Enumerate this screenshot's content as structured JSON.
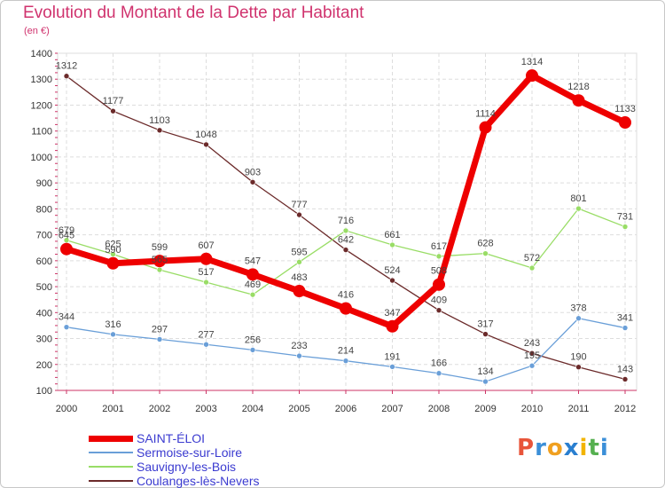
{
  "chart_data": {
    "type": "line",
    "title": "Evolution du Montant de la Dette par Habitant",
    "subtitle": "(en €)",
    "x": [
      "2000",
      "2001",
      "2002",
      "2003",
      "2004",
      "2005",
      "2006",
      "2007",
      "2008",
      "2009",
      "2010",
      "2011",
      "2012"
    ],
    "ylim": [
      100,
      1400
    ],
    "yticks": [
      100,
      200,
      300,
      400,
      500,
      600,
      700,
      800,
      900,
      1000,
      1100,
      1200,
      1300,
      1400
    ],
    "grid": true,
    "legend_position": "bottom-left",
    "series": [
      {
        "name": "SAINT-ÉLOI",
        "color": "#ee0000",
        "width": 7,
        "marker": 7,
        "values": [
          645,
          590,
          599,
          607,
          547,
          483,
          416,
          347,
          508,
          1114,
          1314,
          1218,
          1133
        ]
      },
      {
        "name": "Sermoise-sur-Loire",
        "color": "#6a9fd8",
        "width": 1.3,
        "marker": 3,
        "values": [
          344,
          316,
          297,
          277,
          256,
          233,
          214,
          191,
          166,
          134,
          195,
          378,
          341
        ]
      },
      {
        "name": "Sauvigny-les-Bois",
        "color": "#99dd66",
        "width": 1.3,
        "marker": 3,
        "values": [
          679,
          625,
          565,
          517,
          469,
          595,
          716,
          661,
          617,
          628,
          572,
          801,
          731
        ]
      },
      {
        "name": "Coulanges-lès-Nevers",
        "color": "#6b2a2a",
        "width": 1.3,
        "marker": 3,
        "values": [
          1312,
          1177,
          1103,
          1048,
          903,
          777,
          642,
          524,
          409,
          317,
          243,
          190,
          143
        ]
      }
    ]
  },
  "logo": {
    "letters": [
      "P",
      "r",
      "o",
      "x",
      "i",
      "t",
      "i"
    ],
    "colors": [
      "#e8553a",
      "#3b8fd8",
      "#f0a020",
      "#2a7fd0",
      "#f2b400",
      "#56b050",
      "#3b8fd8"
    ]
  }
}
